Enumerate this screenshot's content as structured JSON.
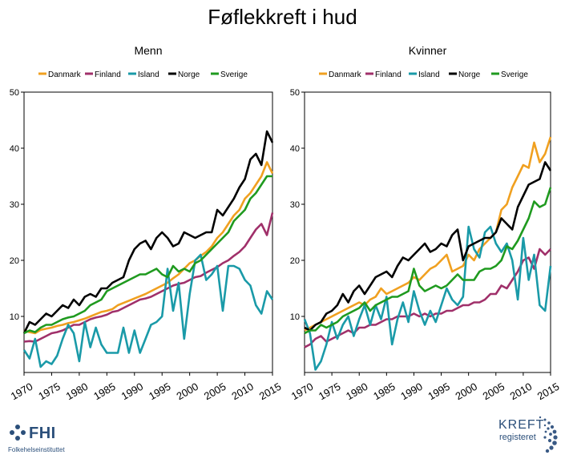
{
  "title": "Føflekkreft i hud",
  "colors": {
    "Danmark": "#f0a020",
    "Finland": "#a0306a",
    "Island": "#1a9aa8",
    "Norge": "#000000",
    "Sverige": "#1f9a1f"
  },
  "logos": {
    "fhi_name": "FHI",
    "fhi_subtitle": "Folkehelseinstituttet",
    "kreft_line1": "KREFT",
    "kreft_line2": "registeret"
  },
  "chart_data": [
    {
      "type": "line",
      "title": "Menn",
      "legend_position": "top",
      "grid": false,
      "xlim": [
        1970,
        2015
      ],
      "ylim": [
        0,
        50
      ],
      "x_ticks": [
        1970,
        1975,
        1980,
        1985,
        1990,
        1995,
        2000,
        2005,
        2010,
        2015
      ],
      "y_ticks": [
        10,
        20,
        30,
        40,
        50
      ],
      "x": [
        1970,
        1971,
        1972,
        1973,
        1974,
        1975,
        1976,
        1977,
        1978,
        1979,
        1980,
        1981,
        1982,
        1983,
        1984,
        1985,
        1986,
        1987,
        1988,
        1989,
        1990,
        1991,
        1992,
        1993,
        1994,
        1995,
        1996,
        1997,
        1998,
        1999,
        2000,
        2001,
        2002,
        2003,
        2004,
        2005,
        2006,
        2007,
        2008,
        2009,
        2010,
        2011,
        2012,
        2013,
        2014,
        2015
      ],
      "series": [
        {
          "name": "Danmark",
          "values": [
            7.5,
            7.2,
            7.0,
            7.6,
            7.8,
            8.0,
            8.3,
            8.5,
            8.8,
            9.0,
            9.3,
            9.6,
            10.0,
            10.4,
            10.8,
            11.0,
            11.3,
            12.0,
            12.4,
            12.8,
            13.2,
            13.6,
            14.0,
            14.5,
            15.0,
            15.5,
            16.0,
            16.8,
            17.5,
            18.5,
            19.5,
            20.0,
            20.8,
            21.5,
            22.5,
            24.0,
            25.0,
            26.5,
            28.0,
            29.0,
            31.0,
            32.0,
            33.5,
            35.0,
            37.5,
            35.5
          ]
        },
        {
          "name": "Finland",
          "values": [
            5.5,
            5.6,
            5.5,
            6.0,
            6.5,
            7.0,
            7.2,
            7.5,
            8.0,
            8.5,
            8.5,
            9.0,
            9.5,
            9.8,
            10.0,
            10.3,
            10.8,
            11.0,
            11.5,
            12.0,
            12.5,
            13.0,
            13.2,
            13.5,
            14.0,
            14.5,
            15.0,
            15.5,
            15.8,
            16.0,
            16.5,
            17.0,
            17.2,
            17.8,
            18.3,
            18.8,
            19.5,
            20.0,
            20.8,
            21.5,
            22.5,
            24.0,
            25.5,
            26.5,
            24.5,
            28.5
          ]
        },
        {
          "name": "Island",
          "values": [
            4.0,
            2.5,
            6.0,
            1.0,
            2.0,
            1.5,
            3.0,
            6.0,
            8.5,
            7.0,
            2.0,
            9.0,
            4.5,
            8.0,
            5.0,
            3.5,
            3.5,
            3.5,
            8.0,
            3.5,
            7.5,
            3.5,
            6.0,
            8.5,
            9.0,
            10.0,
            18.5,
            11.0,
            16.0,
            6.0,
            14.0,
            20.0,
            21.0,
            16.5,
            17.5,
            19.0,
            11.0,
            19.0,
            19.0,
            18.5,
            16.5,
            15.5,
            12.0,
            10.5,
            14.5,
            13.0
          ]
        },
        {
          "name": "Norge",
          "values": [
            7.0,
            9.0,
            8.5,
            9.5,
            10.5,
            10.0,
            11.0,
            12.0,
            11.5,
            13.0,
            12.0,
            13.5,
            14.0,
            13.5,
            15.0,
            15.0,
            16.0,
            16.5,
            17.0,
            20.0,
            22.0,
            23.0,
            23.5,
            22.0,
            24.0,
            25.0,
            24.0,
            22.5,
            23.0,
            25.0,
            24.5,
            24.0,
            24.5,
            25.0,
            25.0,
            29.0,
            28.0,
            29.5,
            31.0,
            33.0,
            34.5,
            38.0,
            39.0,
            37.0,
            43.0,
            41.0
          ]
        },
        {
          "name": "Sverige",
          "values": [
            7.0,
            7.5,
            7.2,
            8.0,
            8.5,
            8.5,
            9.0,
            9.5,
            9.8,
            10.0,
            10.5,
            11.0,
            12.0,
            12.5,
            13.0,
            14.5,
            15.0,
            15.5,
            16.0,
            16.5,
            17.0,
            17.5,
            17.5,
            18.0,
            18.5,
            17.5,
            17.0,
            19.0,
            18.0,
            18.5,
            18.0,
            19.5,
            20.0,
            21.0,
            22.0,
            23.0,
            24.0,
            25.0,
            27.0,
            28.0,
            29.0,
            31.0,
            32.0,
            33.5,
            35.0,
            35.0
          ]
        }
      ]
    },
    {
      "type": "line",
      "title": "Kvinner",
      "legend_position": "top",
      "grid": false,
      "xlim": [
        1970,
        2015
      ],
      "ylim": [
        0,
        50
      ],
      "x_ticks": [
        1970,
        1975,
        1980,
        1985,
        1990,
        1995,
        2000,
        2005,
        2010,
        2015
      ],
      "y_ticks": [
        10,
        20,
        30,
        40,
        50
      ],
      "x": [
        1970,
        1971,
        1972,
        1973,
        1974,
        1975,
        1976,
        1977,
        1978,
        1979,
        1980,
        1981,
        1982,
        1983,
        1984,
        1985,
        1986,
        1987,
        1988,
        1989,
        1990,
        1991,
        1992,
        1993,
        1994,
        1995,
        1996,
        1997,
        1998,
        1999,
        2000,
        2001,
        2002,
        2003,
        2004,
        2005,
        2006,
        2007,
        2008,
        2009,
        2010,
        2011,
        2012,
        2013,
        2014,
        2015
      ],
      "series": [
        {
          "name": "Danmark",
          "values": [
            7.5,
            8.0,
            8.5,
            9.0,
            9.5,
            10.0,
            10.5,
            11.0,
            11.5,
            12.0,
            12.5,
            12.0,
            13.0,
            13.5,
            15.0,
            14.0,
            14.5,
            15.0,
            15.5,
            16.0,
            17.0,
            16.5,
            17.5,
            18.5,
            19.0,
            20.0,
            21.0,
            18.0,
            18.5,
            19.0,
            21.0,
            20.0,
            22.0,
            23.0,
            24.0,
            25.0,
            29.0,
            30.0,
            33.0,
            35.0,
            37.0,
            36.5,
            41.0,
            37.5,
            39.0,
            42.0
          ]
        },
        {
          "name": "Finland",
          "values": [
            4.5,
            5.0,
            6.0,
            6.5,
            5.5,
            6.0,
            6.5,
            7.0,
            7.5,
            7.0,
            8.0,
            8.0,
            8.5,
            8.5,
            9.0,
            9.5,
            9.5,
            10.0,
            10.0,
            10.0,
            10.5,
            10.0,
            10.5,
            10.0,
            10.5,
            10.5,
            11.0,
            11.0,
            11.5,
            12.0,
            12.0,
            12.5,
            12.5,
            13.0,
            14.0,
            14.0,
            15.5,
            15.0,
            16.5,
            18.0,
            20.0,
            20.5,
            18.5,
            22.0,
            21.0,
            22.0
          ]
        },
        {
          "name": "Island",
          "values": [
            9.5,
            7.0,
            0.5,
            2.0,
            5.0,
            9.0,
            6.0,
            8.5,
            10.0,
            6.5,
            9.5,
            12.0,
            8.5,
            12.0,
            9.5,
            13.5,
            5.0,
            9.5,
            12.5,
            9.0,
            14.5,
            11.0,
            8.5,
            11.0,
            9.0,
            12.0,
            15.0,
            13.0,
            12.0,
            13.5,
            26.0,
            22.0,
            20.5,
            25.0,
            26.0,
            23.0,
            21.5,
            23.0,
            20.0,
            13.0,
            24.0,
            16.5,
            21.0,
            12.0,
            11.0,
            19.0
          ]
        },
        {
          "name": "Norge",
          "values": [
            8.0,
            7.5,
            8.5,
            9.0,
            10.5,
            11.0,
            12.0,
            14.0,
            12.5,
            14.5,
            15.5,
            14.0,
            15.5,
            17.0,
            17.5,
            18.0,
            17.0,
            19.0,
            20.5,
            20.0,
            21.0,
            22.0,
            23.0,
            21.5,
            22.0,
            23.0,
            22.5,
            24.5,
            25.5,
            20.0,
            22.5,
            23.0,
            23.5,
            24.0,
            24.0,
            25.0,
            27.5,
            26.5,
            25.5,
            29.5,
            31.5,
            33.5,
            34.0,
            34.5,
            37.5,
            36.0
          ]
        },
        {
          "name": "Sverige",
          "values": [
            7.0,
            7.5,
            7.5,
            8.5,
            8.0,
            8.5,
            9.0,
            10.0,
            10.5,
            11.0,
            11.5,
            12.5,
            11.0,
            12.0,
            12.5,
            13.0,
            13.5,
            13.5,
            14.0,
            14.5,
            18.5,
            15.5,
            14.5,
            15.0,
            15.5,
            15.0,
            15.5,
            16.5,
            17.5,
            16.5,
            16.5,
            16.5,
            18.0,
            18.5,
            18.5,
            19.0,
            20.0,
            22.5,
            22.0,
            23.5,
            25.5,
            27.5,
            30.5,
            29.5,
            30.0,
            33.0
          ]
        }
      ]
    }
  ]
}
